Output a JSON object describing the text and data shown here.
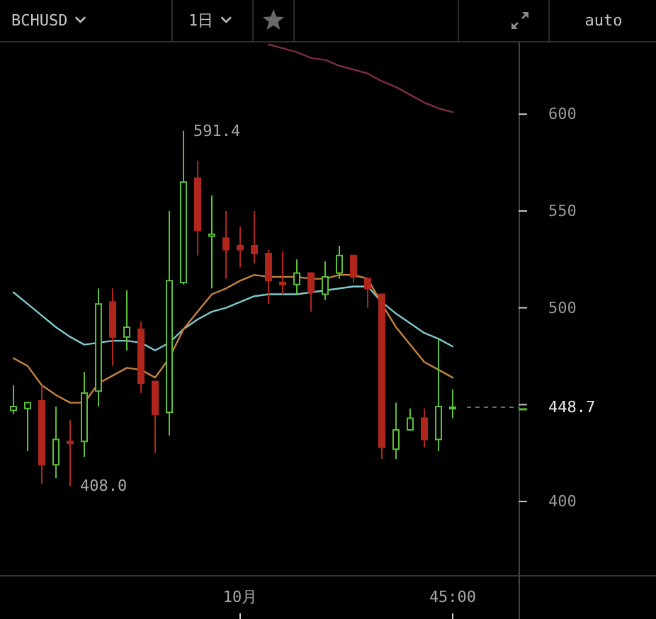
{
  "chart_data": {
    "type": "candlestick",
    "title": "BCHUSD",
    "subtitle": "1日",
    "categories": [
      null,
      null,
      null,
      null,
      null,
      null,
      null,
      null,
      null,
      null,
      null,
      null,
      null,
      null,
      null,
      null,
      "10月",
      null,
      null,
      null,
      null,
      null,
      null,
      null,
      null,
      null,
      null,
      null,
      null,
      null,
      null,
      "45:00"
    ],
    "ohlc": [
      [
        447,
        460,
        445,
        449
      ],
      [
        448,
        451,
        426,
        451
      ],
      [
        452,
        460,
        409,
        419
      ],
      [
        419,
        449,
        412,
        432
      ],
      [
        431,
        442,
        408.0,
        430
      ],
      [
        431,
        467,
        423,
        456
      ],
      [
        457,
        510,
        449,
        502
      ],
      [
        503,
        510,
        470,
        485
      ],
      [
        485,
        509,
        478,
        490
      ],
      [
        489,
        493,
        456,
        461
      ],
      [
        462,
        462,
        425,
        445
      ],
      [
        446,
        550,
        434,
        514
      ],
      [
        513,
        591.4,
        512,
        565
      ],
      [
        567,
        576,
        527,
        540
      ],
      [
        537,
        558,
        510,
        538
      ],
      [
        536,
        550,
        515,
        530
      ],
      [
        532,
        542,
        521,
        530
      ],
      [
        532,
        550,
        523,
        528
      ],
      [
        528,
        530,
        502,
        514
      ],
      [
        513,
        529,
        507,
        512
      ],
      [
        512,
        525,
        507,
        518
      ],
      [
        518,
        518,
        498,
        508
      ],
      [
        507,
        524,
        504,
        516
      ],
      [
        518,
        532,
        515,
        527
      ],
      [
        527,
        527,
        513,
        516
      ],
      [
        515,
        515,
        500,
        510
      ],
      [
        507,
        507,
        422,
        428
      ],
      [
        427,
        451,
        422,
        437
      ],
      [
        437,
        448,
        437,
        443
      ],
      [
        443,
        448,
        428,
        432
      ],
      [
        432,
        484,
        426,
        449
      ],
      [
        448,
        458,
        443,
        448.7
      ]
    ],
    "colors": [
      "#5cbf3a",
      "#5cbf3a",
      "#b0261d",
      "#5cbf3a",
      "#b0261d",
      "#5cbf3a",
      "#5cbf3a",
      "#b0261d",
      "#5cbf3a",
      "#b0261d",
      "#b0261d",
      "#5cbf3a",
      "#5cbf3a",
      "#b0261d",
      "#5cbf3a",
      "#b0261d",
      "#b0261d",
      "#b0261d",
      "#b0261d",
      "#b0261d",
      "#5cbf3a",
      "#b0261d",
      "#5cbf3a",
      "#5cbf3a",
      "#b0261d",
      "#b0261d",
      "#b0261d",
      "#5cbf3a",
      "#5cbf3a",
      "#b0261d",
      "#5cbf3a",
      "#5cbf3a"
    ],
    "series": [
      {
        "type": "line",
        "color": "#7fc9cd",
        "values": [
          508,
          502,
          496,
          490,
          485,
          481,
          482,
          483,
          483,
          482,
          478,
          482,
          489,
          494,
          498,
          500,
          503,
          506,
          507,
          507,
          507,
          508,
          509,
          510,
          511,
          511,
          503,
          497,
          492,
          487,
          484,
          480
        ]
      },
      {
        "type": "line",
        "color": "#c4843e",
        "values": [
          474,
          470,
          460,
          455,
          451,
          451,
          461,
          465,
          469,
          468,
          464,
          474,
          489,
          498,
          507,
          510,
          514,
          517,
          516,
          516,
          516,
          515,
          515,
          517,
          517,
          515,
          502,
          490,
          481,
          472,
          468,
          464
        ]
      },
      {
        "type": "line",
        "color": "#7a2e3e",
        "values": [
          null,
          null,
          null,
          null,
          null,
          null,
          null,
          null,
          null,
          null,
          null,
          null,
          null,
          null,
          null,
          null,
          null,
          null,
          636,
          634,
          632,
          629,
          628,
          625,
          623,
          621,
          617,
          614,
          610,
          606,
          603,
          601
        ]
      }
    ],
    "ylim": [
      362,
      637
    ],
    "yticks": [
      400,
      {
        "value": 450,
        "label": null
      },
      500,
      550,
      600
    ],
    "annotations": [
      "591.4",
      "408.0",
      "auto",
      "448.7"
    ]
  }
}
